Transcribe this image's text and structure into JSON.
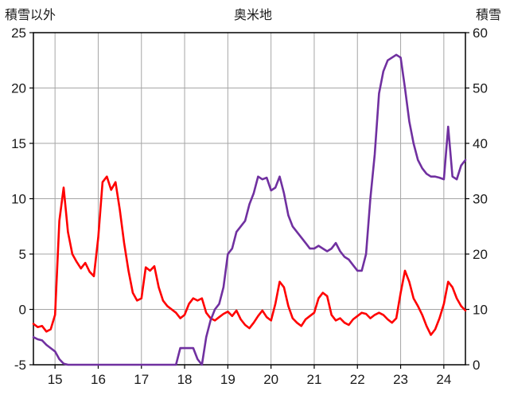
{
  "header": {
    "left_axis_title": "積雪以外",
    "title": "奥米地",
    "right_axis_title": "積雪"
  },
  "chart_data": {
    "type": "line",
    "title": "奥米地",
    "left_axis": {
      "label": "積雪以外",
      "min": -5,
      "max": 25,
      "ticks": [
        25,
        20,
        15,
        10,
        5,
        0,
        -5
      ]
    },
    "right_axis": {
      "label": "積雪",
      "min": 0,
      "max": 60,
      "ticks": [
        60,
        50,
        40,
        30,
        20,
        10,
        0
      ]
    },
    "x_axis": {
      "min": 14.5,
      "max": 24.5,
      "ticks": [
        15,
        16,
        17,
        18,
        19,
        20,
        21,
        22,
        23,
        24
      ],
      "minor_gridlines_at_half_steps": true
    },
    "grid": {
      "color": "#a6a6a6",
      "border_color": "#000000"
    },
    "x_start": 14.5,
    "x_step": 0.1,
    "series": [
      {
        "name": "積雪以外",
        "axis": "left",
        "color": "#ff0000",
        "values": [
          -1.3,
          -1.6,
          -1.5,
          -2.0,
          -1.8,
          -0.5,
          8.0,
          11.0,
          7.0,
          5.0,
          4.3,
          3.7,
          4.2,
          3.4,
          3.0,
          6.5,
          11.5,
          12.0,
          10.8,
          11.5,
          9.0,
          6.0,
          3.5,
          1.5,
          0.8,
          1.0,
          3.8,
          3.5,
          3.9,
          2.0,
          0.8,
          0.3,
          0.0,
          -0.3,
          -0.8,
          -0.5,
          0.5,
          1.0,
          0.8,
          1.0,
          -0.3,
          -0.8,
          -1.0,
          -0.7,
          -0.4,
          -0.2,
          -0.6,
          -0.1,
          -0.9,
          -1.4,
          -1.7,
          -1.2,
          -0.6,
          -0.1,
          -0.7,
          -1.0,
          0.5,
          2.5,
          2.0,
          0.3,
          -0.8,
          -1.2,
          -1.5,
          -0.9,
          -0.6,
          -0.3,
          1.0,
          1.5,
          1.2,
          -0.5,
          -1.0,
          -0.8,
          -1.2,
          -1.4,
          -0.9,
          -0.6,
          -0.3,
          -0.4,
          -0.8,
          -0.5,
          -0.3,
          -0.5,
          -0.9,
          -1.2,
          -0.8,
          1.5,
          3.5,
          2.5,
          1.0,
          0.3,
          -0.5,
          -1.5,
          -2.3,
          -1.8,
          -0.8,
          0.5,
          2.5,
          2.0,
          1.0,
          0.3,
          -0.1
        ]
      },
      {
        "name": "積雪",
        "axis": "right",
        "color": "#7030a0",
        "values": [
          5.0,
          4.6,
          4.4,
          3.6,
          3.0,
          2.4,
          1.0,
          0.2,
          0.0,
          0.0,
          0.0,
          0.0,
          0.0,
          0.0,
          0.0,
          0.0,
          0.0,
          0.0,
          0.0,
          0.0,
          0.0,
          0.0,
          0.0,
          0.0,
          0.0,
          0.0,
          0.0,
          0.0,
          0.0,
          0.0,
          0.0,
          0.0,
          0.0,
          0.0,
          3.0,
          3.0,
          3.0,
          3.0,
          1.0,
          0.0,
          5.0,
          8.0,
          10.0,
          11.0,
          14.0,
          20.0,
          21.0,
          24.0,
          25.0,
          26.0,
          29.0,
          31.0,
          34.0,
          33.5,
          33.8,
          31.5,
          32.0,
          34.0,
          31.0,
          27.0,
          25.0,
          24.0,
          23.0,
          22.0,
          21.0,
          21.0,
          21.5,
          21.0,
          20.5,
          21.0,
          22.0,
          20.5,
          19.5,
          19.0,
          18.0,
          17.0,
          17.0,
          20.0,
          30.0,
          38.0,
          49.0,
          53.0,
          55.0,
          55.5,
          56.0,
          55.5,
          50.0,
          44.0,
          40.0,
          37.0,
          35.5,
          34.5,
          34.0,
          34.0,
          33.8,
          33.5,
          43.0,
          34.0,
          33.5,
          36.0,
          37.0
        ]
      }
    ]
  }
}
